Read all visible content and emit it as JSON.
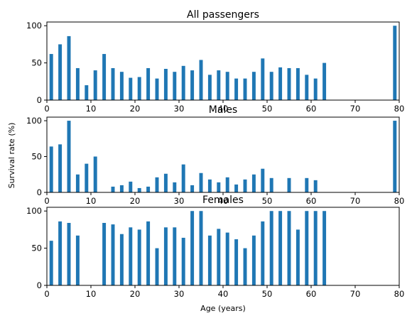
{
  "chart_data": [
    {
      "type": "bar",
      "title": "All passengers",
      "xlim": [
        0,
        80
      ],
      "ylim": [
        0,
        105
      ],
      "xticks": [
        0,
        10,
        20,
        30,
        40,
        50,
        60,
        70,
        80
      ],
      "yticks": [
        0,
        50,
        100
      ],
      "x": [
        1,
        3,
        5,
        7,
        9,
        11,
        13,
        15,
        17,
        19,
        21,
        23,
        25,
        27,
        29,
        31,
        33,
        35,
        37,
        39,
        41,
        43,
        45,
        47,
        49,
        51,
        53,
        55,
        57,
        59,
        61,
        63,
        79
      ],
      "values": [
        62,
        75,
        86,
        43,
        20,
        40,
        62,
        43,
        38,
        30,
        31,
        43,
        29,
        42,
        38,
        46,
        40,
        54,
        34,
        40,
        38,
        29,
        29,
        38,
        56,
        38,
        44,
        43,
        43,
        34,
        29,
        50,
        100
      ]
    },
    {
      "type": "bar",
      "title": "Males",
      "xlim": [
        0,
        80
      ],
      "ylim": [
        0,
        105
      ],
      "xticks": [
        0,
        10,
        20,
        30,
        40,
        50,
        60,
        70,
        80
      ],
      "yticks": [
        0,
        50,
        100
      ],
      "x": [
        1,
        3,
        5,
        7,
        9,
        11,
        15,
        17,
        19,
        21,
        23,
        25,
        27,
        29,
        31,
        33,
        35,
        37,
        39,
        41,
        43,
        45,
        47,
        49,
        51,
        55,
        59,
        61,
        79
      ],
      "values": [
        64,
        67,
        100,
        25,
        40,
        50,
        8,
        10,
        15,
        6,
        8,
        21,
        26,
        14,
        39,
        10,
        27,
        18,
        14,
        21,
        11,
        18,
        25,
        33,
        20,
        20,
        20,
        17,
        100
      ]
    },
    {
      "type": "bar",
      "title": "Females",
      "xlabel": "Age (years)",
      "xlim": [
        0,
        80
      ],
      "ylim": [
        0,
        105
      ],
      "xticks": [
        0,
        10,
        20,
        30,
        40,
        50,
        60,
        70,
        80
      ],
      "yticks": [
        0,
        50,
        100
      ],
      "x": [
        1,
        3,
        5,
        7,
        13,
        15,
        17,
        19,
        21,
        23,
        25,
        27,
        29,
        31,
        33,
        35,
        37,
        39,
        41,
        43,
        45,
        47,
        49,
        51,
        53,
        55,
        57,
        59,
        61,
        63
      ],
      "values": [
        60,
        86,
        84,
        67,
        84,
        82,
        69,
        78,
        75,
        86,
        50,
        78,
        78,
        64,
        100,
        100,
        67,
        76,
        71,
        62,
        50,
        67,
        86,
        100,
        100,
        100,
        75,
        100,
        100,
        100
      ]
    }
  ],
  "shared_ylabel": "Survival rate (%)",
  "colors": {
    "bar": "#1f77b4"
  }
}
